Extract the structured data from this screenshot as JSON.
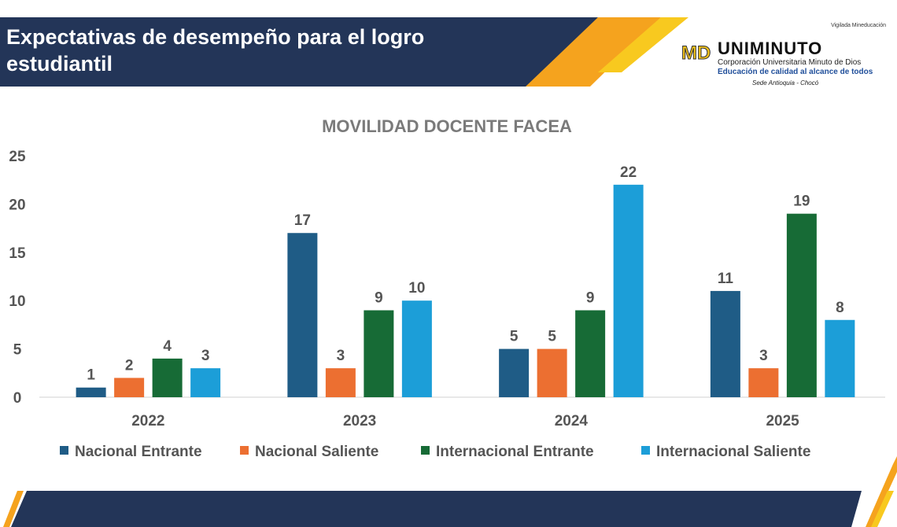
{
  "header": {
    "title": "Expectativas de desempeño para el logro estudiantil",
    "logo": {
      "vigilada": "Vigilada Mineducación",
      "name": "UNIMINUTO",
      "mark": "MD",
      "subtitle": "Corporación Universitaria Minuto de Dios",
      "tagline": "Educación de calidad al alcance de todos",
      "sede": "Sede Antioquia - Chocó"
    }
  },
  "colors": {
    "navy": "#233558",
    "orange": "#f5a31e",
    "yellow": "#f8c91f"
  },
  "chart_data": {
    "type": "bar",
    "title": "MOVILIDAD DOCENTE FACEA",
    "categories": [
      "2022",
      "2023",
      "2024",
      "2025"
    ],
    "series": [
      {
        "name": "Nacional Entrante",
        "color": "#1f5c86",
        "values": [
          1,
          17,
          5,
          11
        ]
      },
      {
        "name": "Nacional Saliente",
        "color": "#ec6f31",
        "values": [
          2,
          3,
          5,
          3
        ]
      },
      {
        "name": "Internacional Entrante",
        "color": "#176b36",
        "values": [
          4,
          9,
          9,
          19
        ]
      },
      {
        "name": "Internacional Saliente",
        "color": "#1c9ed8",
        "values": [
          3,
          10,
          22,
          8
        ]
      }
    ],
    "ylim": [
      0,
      25
    ],
    "yticks": [
      0,
      5,
      10,
      15,
      20,
      25
    ],
    "grid": false,
    "legend": "bottom",
    "data_labels": true
  }
}
